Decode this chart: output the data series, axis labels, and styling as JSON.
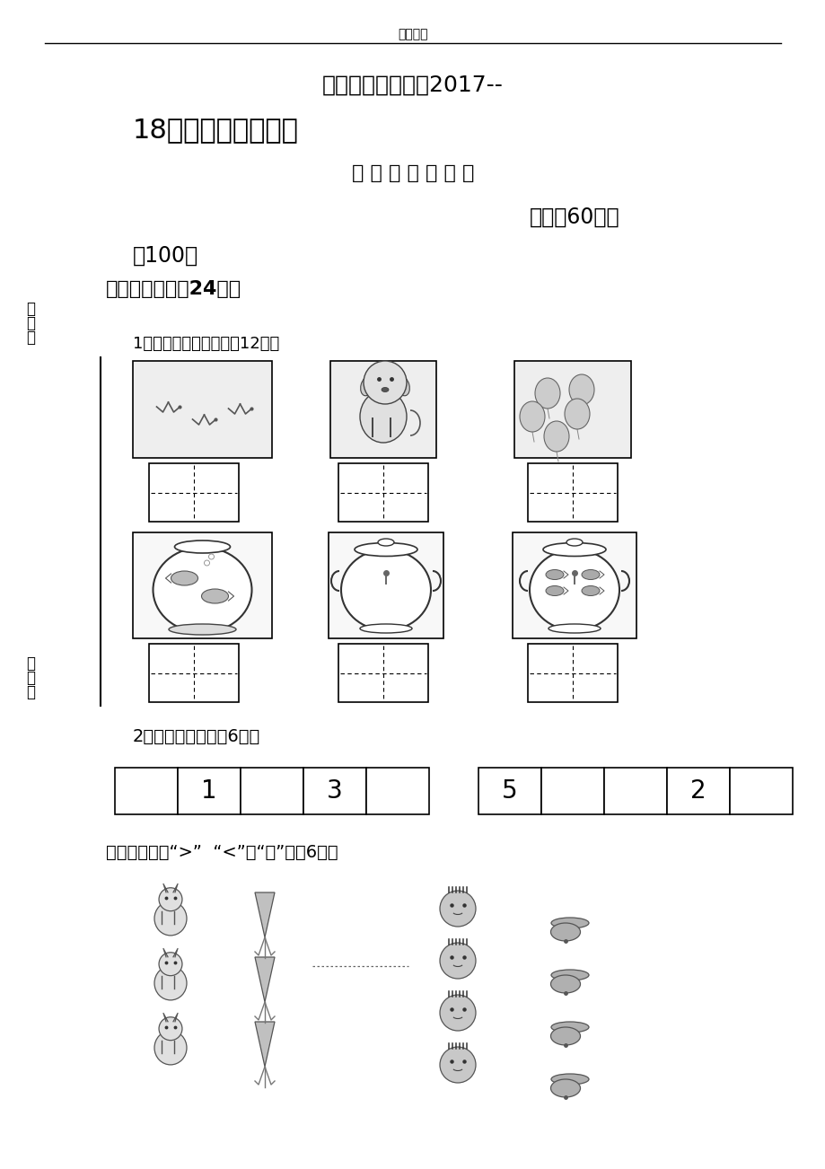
{
  "bg_color": "#ffffff",
  "header_text": "精品资料",
  "title1": "唐河育才实验学校2017--",
  "title2": "18学年度第一次月考",
  "title3": "一 年 级 数 学 试 题",
  "title4": "时间：60分钟",
  "title5": "値100分",
  "section1_label": "一、填一填。（24分）",
  "q1_label": "1．数一数，写一写。（12分）",
  "q2_label": "2．按顺序填数。（6分）",
  "q3_label": "比一比，填上“>”  “<”或“＝”。（6分）",
  "bj_chars": [
    "班",
    "级",
    "："
  ],
  "xm_chars": [
    "姓",
    "名",
    "："
  ],
  "seq1": [
    "",
    "1",
    "",
    "3",
    ""
  ],
  "seq2": [
    "5",
    "",
    "",
    "2",
    ""
  ]
}
